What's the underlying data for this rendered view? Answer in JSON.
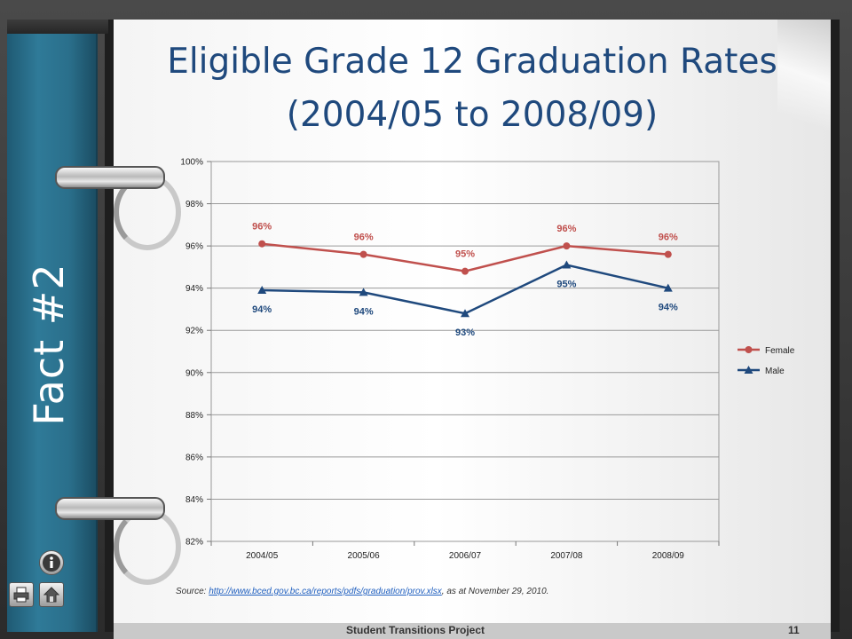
{
  "slide": {
    "side_label": "Fact #2",
    "title_line1": "Eligible Grade 12 Graduation Rates",
    "title_line2": "(2004/05 to 2008/09)",
    "source_prefix": "Source:",
    "source_link": "http://www.bced.gov.bc.ca/reports/pdfs/graduation/prov.xlsx",
    "source_suffix": ",  as at November 29, 2010.",
    "footer": "Student Transitions Project",
    "slide_number": "11"
  },
  "icons": {
    "info": "info-icon",
    "print": "printer-icon",
    "home": "home-icon"
  },
  "colors": {
    "title": "#1f497d",
    "female": "#c0504d",
    "male": "#1f497d",
    "spine": "#2a6f8b"
  },
  "chart_data": {
    "type": "line",
    "categories": [
      "2004/05",
      "2005/06",
      "2006/07",
      "2007/08",
      "2008/09"
    ],
    "series": [
      {
        "name": "Female",
        "values": [
          96.1,
          95.6,
          94.8,
          96.0,
          95.6
        ],
        "labels": [
          "96%",
          "96%",
          "95%",
          "96%",
          "96%"
        ],
        "marker": "circle"
      },
      {
        "name": "Male",
        "values": [
          93.9,
          93.8,
          92.8,
          95.1,
          94.0
        ],
        "labels": [
          "94%",
          "94%",
          "93%",
          "95%",
          "94%"
        ],
        "marker": "triangle"
      }
    ],
    "ylim": [
      82,
      100
    ],
    "yticks": [
      "82%",
      "84%",
      "86%",
      "88%",
      "90%",
      "92%",
      "94%",
      "96%",
      "98%",
      "100%"
    ],
    "grid": true,
    "legend": "right"
  }
}
